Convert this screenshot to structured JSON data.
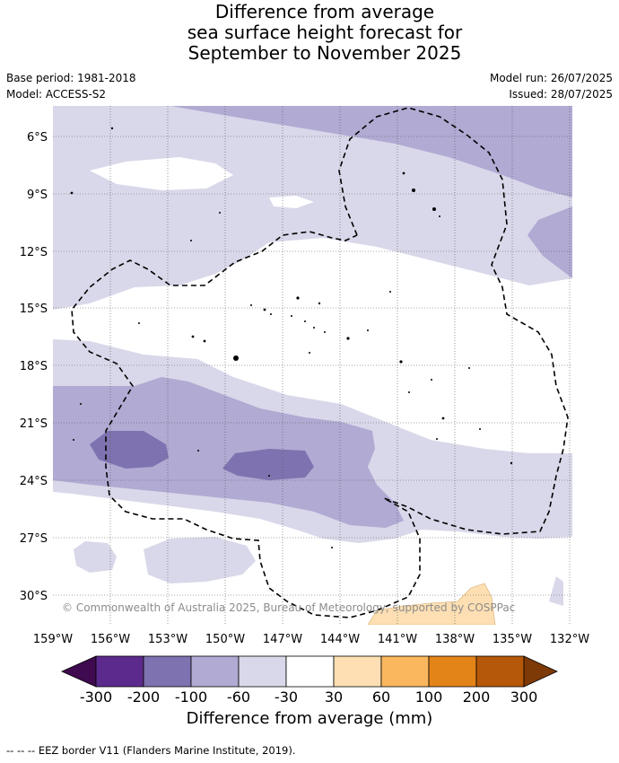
{
  "title": {
    "line1": "Difference from average",
    "line2": "sea surface height forecast for",
    "line3": "September to November 2025"
  },
  "meta": {
    "base_period": "Base period: 1981-2018",
    "model": "Model: ACCESS-S2",
    "model_run": "Model run: 26/07/2025",
    "issued": "Issued: 28/07/2025"
  },
  "map": {
    "lat_labels": [
      "6°S",
      "9°S",
      "12°S",
      "15°S",
      "18°S",
      "21°S",
      "24°S",
      "27°S",
      "30°S"
    ],
    "lon_labels": [
      "159°W",
      "156°W",
      "153°W",
      "150°W",
      "147°W",
      "144°W",
      "141°W",
      "138°W",
      "135°W",
      "132°W"
    ],
    "copyright": "© Commonwealth of Australia 2025, Bureau of Meteorology, supported by COSPPac"
  },
  "colorbar": {
    "title": "Difference from average (mm)",
    "ticks": [
      "-300",
      "-200",
      "-100",
      "-60",
      "-30",
      "30",
      "60",
      "100",
      "200",
      "300"
    ],
    "colors": {
      "below_min": "#3f0a4f",
      "c1": "#5c2a8c",
      "c2": "#7f72b0",
      "c3": "#b1aad3",
      "c4": "#d8d8ea",
      "c5": "#ffffff",
      "c6": "#fddfb3",
      "c7": "#fbb75e",
      "c8": "#e38419",
      "c9": "#b55809",
      "above_max": "#7e3a06"
    }
  },
  "footnote": "--  --  -- EEZ border V11 (Flanders Marine Institute, 2019)."
}
